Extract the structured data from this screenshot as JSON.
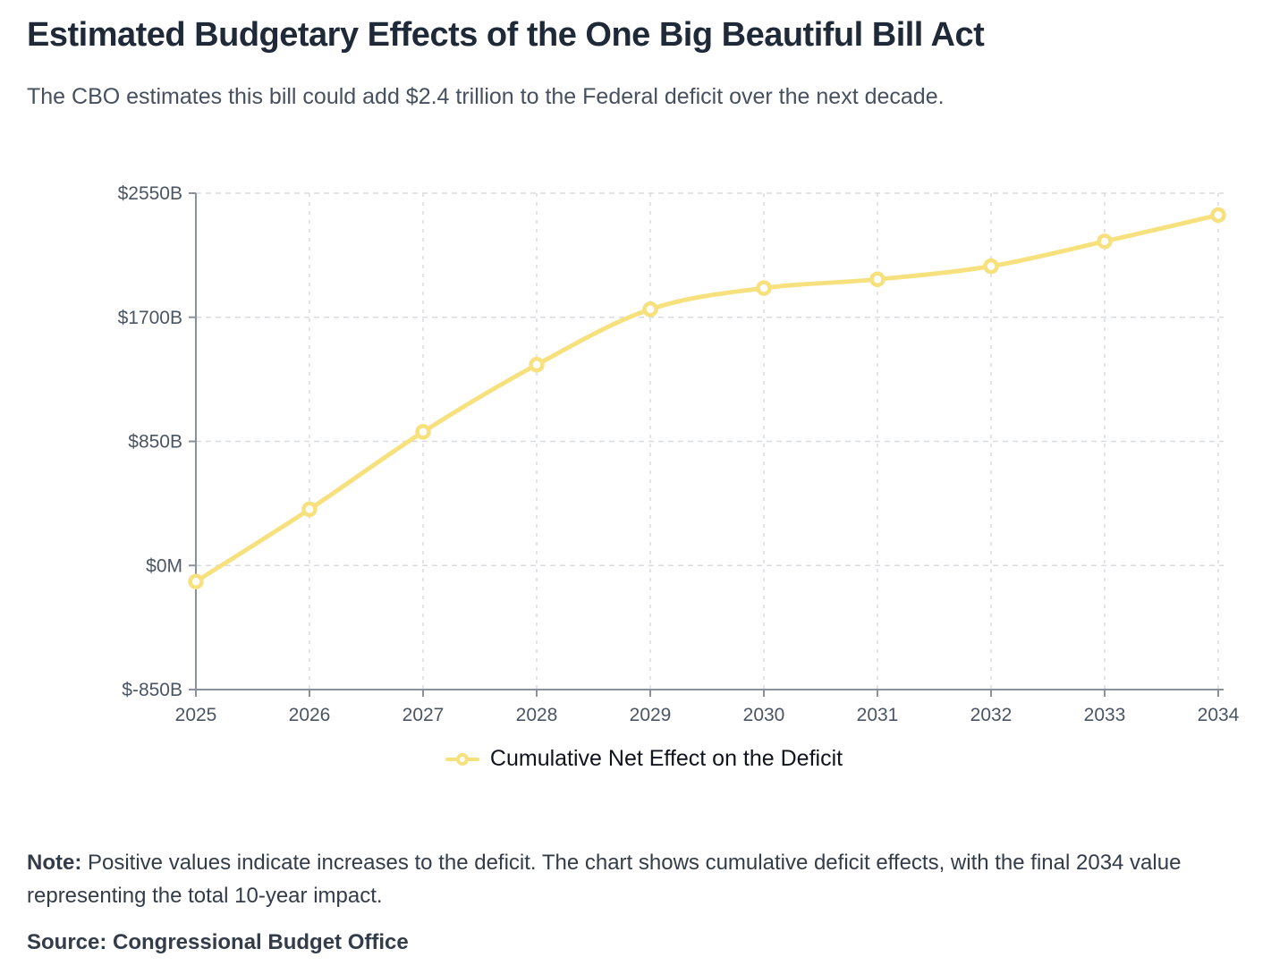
{
  "page": {
    "title": "Estimated Budgetary Effects of the One Big Beautiful Bill Act",
    "subtitle": "The CBO estimates this bill could add $2.4 trillion to the Federal deficit over the next decade."
  },
  "chart_data": {
    "type": "line",
    "title": "Estimated Budgetary Effects of the One Big Beautiful Bill Act",
    "categories": [
      "2025",
      "2026",
      "2027",
      "2028",
      "2029",
      "2030",
      "2031",
      "2032",
      "2033",
      "2034"
    ],
    "series": [
      {
        "name": "Cumulative Net Effect on the Deficit",
        "unit": "billions of dollars",
        "values": [
          -110,
          385,
          915,
          1375,
          1755,
          1900,
          1960,
          2050,
          2220,
          2400
        ],
        "color": "#F7E17E",
        "marker": "hollow-circle"
      }
    ],
    "xlabel": "",
    "ylabel": "",
    "ylim": [
      -850,
      2550
    ],
    "yticks": [
      {
        "value": 2550,
        "label": "$2550B"
      },
      {
        "value": 1700,
        "label": "$1700B"
      },
      {
        "value": 850,
        "label": "$850B"
      },
      {
        "value": 0,
        "label": "$0M"
      },
      {
        "value": -850,
        "label": "$-850B"
      }
    ],
    "grid": "dashed",
    "legend_position": "bottom"
  },
  "legend": {
    "label": "Cumulative Net Effect on the Deficit"
  },
  "footer": {
    "note_label": "Note:",
    "note_body": " Positive values indicate increases to the deficit. The chart shows cumulative deficit effects, with the final 2034 value representing the total 10-year impact.",
    "source": "Source: Congressional Budget Office"
  },
  "colors": {
    "line": "#F7E17E",
    "grid": "#D8DBE0",
    "axis": "#8A919B",
    "tick_text": "#4B5563",
    "title_text": "#1F2937",
    "subtitle_text": "#46505E",
    "note_text": "#333C49"
  }
}
